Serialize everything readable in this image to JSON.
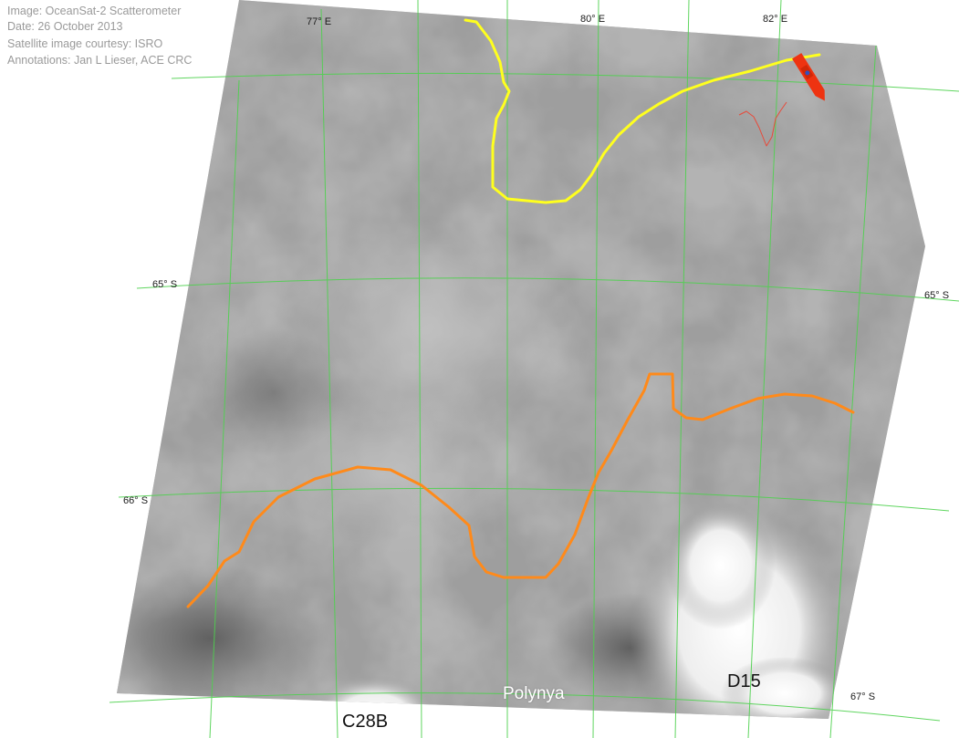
{
  "credits": {
    "line1": "Image: OceanSat-2 Scatterometer",
    "line2": "Date: 26 October 2013",
    "line3": "Satellite image courtesy: ISRO",
    "line4": "Annotations: Jan L Lieser, ACE CRC"
  },
  "longitude_labels": {
    "lon77": "77° E",
    "lon80": "80° E",
    "lon82": "82° E"
  },
  "latitude_labels": {
    "lat65_left": "65° S",
    "lat65_right": "65° S",
    "lat66_left": "66° S",
    "lat67_right": "67° S"
  },
  "features": {
    "polynya": "Polynya",
    "d15": "D15",
    "c28b": "C28B"
  },
  "colors": {
    "graticule": "#4ed14e",
    "ice_edge_north": "#ffff1e",
    "ice_edge_south": "#ff8a1a",
    "ship": "#ee3311",
    "ship_track": "#e84a3a"
  },
  "icons": {
    "ship": "ship-icon"
  }
}
